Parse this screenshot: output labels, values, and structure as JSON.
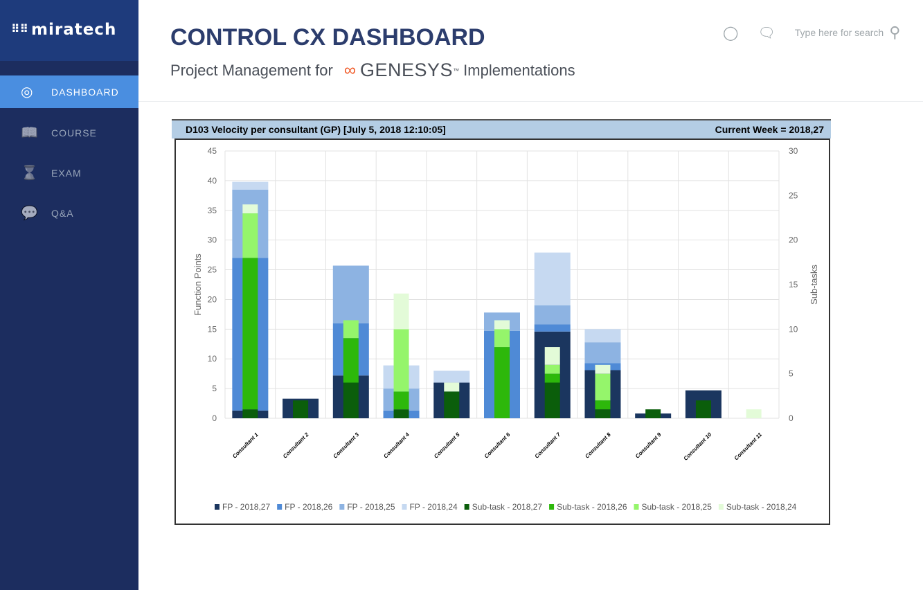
{
  "sidebar": {
    "logo": "miratech",
    "logo_dots": "⠿⠿",
    "items": [
      {
        "label": "DASHBOARD",
        "icon": "speedometer-icon",
        "glyph": "◎",
        "active": true
      },
      {
        "label": "COURSE",
        "icon": "book-icon",
        "glyph": "📖"
      },
      {
        "label": "EXAM",
        "icon": "hourglass-icon",
        "glyph": "⌛"
      },
      {
        "label": "Q&A",
        "icon": "chat-bubble-icon",
        "glyph": "💬"
      }
    ]
  },
  "header": {
    "title": "CONTROL CX DASHBOARD",
    "subtitle_pre": "Project Management for ",
    "brand": "GENESYS",
    "brand_tm": "™",
    "subtitle_post": " Implementations",
    "user_icon": "user-icon",
    "chat_icon": "chat-icon",
    "search_placeholder": "Type here for search"
  },
  "chart_panel": {
    "title": "D103 Velocity per consultant (GP)  [July 5, 2018 12:10:05]",
    "current_week": "Current Week = 2018,27"
  },
  "chart_data": {
    "type": "bar",
    "stacked": true,
    "grid": true,
    "legend": "bottom",
    "categories": [
      "Consultant 1",
      "Consultant 2",
      "Consultant 3",
      "Consultant 4",
      "Consultant 5",
      "Consultant 6",
      "Consultant 7",
      "Consultant 8",
      "Consultant 9",
      "Consultant 10",
      "Consultant 11"
    ],
    "ylabel": "Function Points",
    "ylim": [
      0,
      45
    ],
    "yticks": [
      0,
      5,
      10,
      15,
      20,
      25,
      30,
      35,
      40,
      45
    ],
    "y2label": "Sub-tasks",
    "y2lim": [
      0,
      30
    ],
    "y2ticks": [
      0,
      5,
      10,
      15,
      20,
      25,
      30
    ],
    "series": [
      {
        "name": "FP - 2018,27",
        "axis": "left",
        "color": "#1b365f",
        "values": [
          1.3,
          3.3,
          7.2,
          0,
          6,
          0,
          14.6,
          8.1,
          0.8,
          4.7,
          0
        ]
      },
      {
        "name": "FP - 2018,26",
        "axis": "left",
        "color": "#4f8ad6",
        "values": [
          25.7,
          0,
          8.8,
          1.3,
          0,
          14.7,
          1.2,
          1.2,
          0,
          0,
          0
        ]
      },
      {
        "name": "FP - 2018,25",
        "axis": "left",
        "color": "#8db3e2",
        "values": [
          11.5,
          0,
          9.7,
          3.7,
          0,
          3.1,
          3.2,
          3.5,
          0,
          0,
          0
        ]
      },
      {
        "name": "FP - 2018,24",
        "axis": "left",
        "color": "#c6d9f1",
        "values": [
          1.3,
          0,
          0,
          3.9,
          2,
          0,
          8.9,
          2.2,
          0,
          0,
          0
        ]
      },
      {
        "name": "Sub-task - 2018,27",
        "axis": "right",
        "color": "#0b5e0b",
        "values": [
          1,
          2,
          4,
          1,
          3,
          0,
          4,
          1,
          1,
          2,
          0
        ]
      },
      {
        "name": "Sub-task - 2018,26",
        "axis": "right",
        "color": "#2db80b",
        "values": [
          17,
          0,
          5,
          2,
          0,
          8,
          1,
          1,
          0,
          0,
          0
        ]
      },
      {
        "name": "Sub-task - 2018,25",
        "axis": "right",
        "color": "#95f56b",
        "values": [
          5,
          0,
          2,
          7,
          0,
          2,
          1,
          3,
          0,
          0,
          0
        ]
      },
      {
        "name": "Sub-task - 2018,24",
        "axis": "right",
        "color": "#e3fbd8",
        "values": [
          1,
          0,
          0,
          4,
          1,
          1,
          2,
          1,
          0,
          0,
          1
        ]
      }
    ]
  }
}
